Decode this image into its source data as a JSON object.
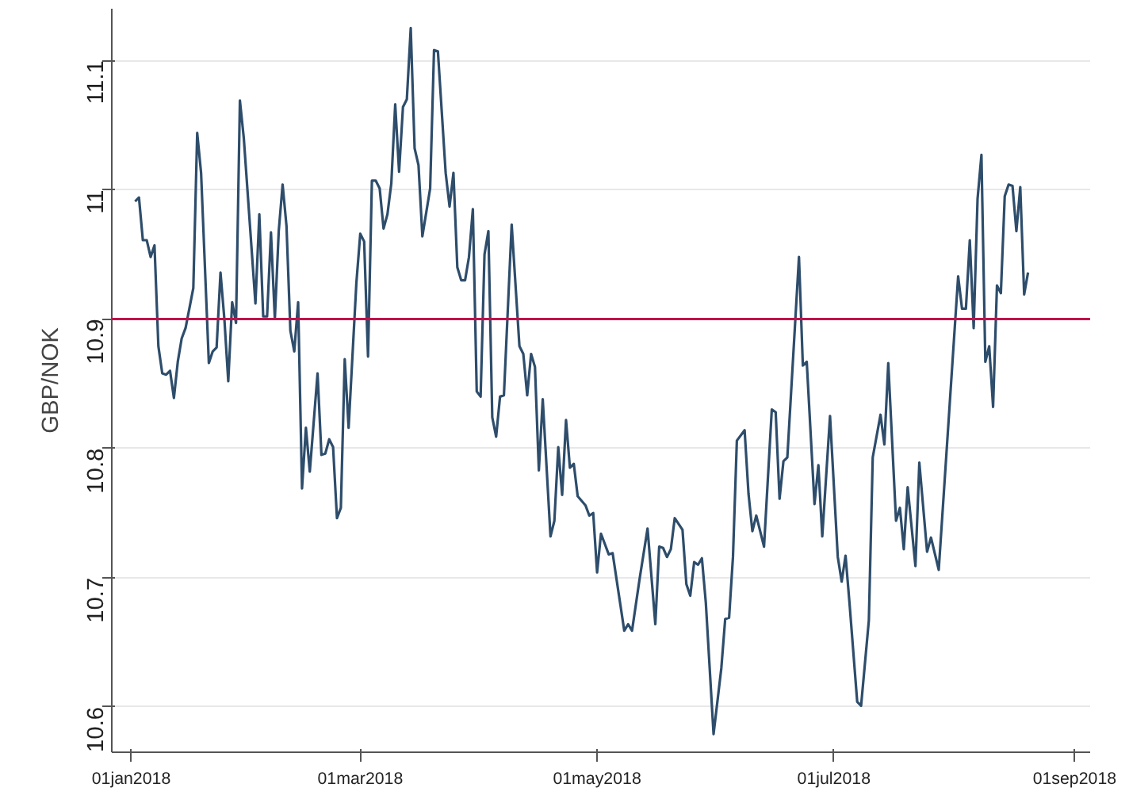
{
  "chart_data": {
    "type": "line",
    "ylabel": "GBP/NOK",
    "x": [
      "2018-01-02",
      "2018-01-03",
      "2018-01-04",
      "2018-01-05",
      "2018-01-06",
      "2018-01-07",
      "2018-01-08",
      "2018-01-09",
      "2018-01-10",
      "2018-01-11",
      "2018-01-12",
      "2018-01-13",
      "2018-01-14",
      "2018-01-15",
      "2018-01-17",
      "2018-01-18",
      "2018-01-19",
      "2018-01-21",
      "2018-01-22",
      "2018-01-23",
      "2018-01-24",
      "2018-01-25",
      "2018-01-26",
      "2018-01-27",
      "2018-01-28",
      "2018-01-29",
      "2018-01-30",
      "2018-02-02",
      "2018-02-03",
      "2018-02-04",
      "2018-02-05",
      "2018-02-06",
      "2018-02-07",
      "2018-02-08",
      "2018-02-09",
      "2018-02-10",
      "2018-02-11",
      "2018-02-12",
      "2018-02-13",
      "2018-02-14",
      "2018-02-15",
      "2018-02-16",
      "2018-02-18",
      "2018-02-19",
      "2018-02-20",
      "2018-02-21",
      "2018-02-22",
      "2018-02-23",
      "2018-02-24",
      "2018-02-25",
      "2018-02-26",
      "2018-02-28",
      "2018-03-01",
      "2018-03-02",
      "2018-03-03",
      "2018-03-04",
      "2018-03-05",
      "2018-03-06",
      "2018-03-07",
      "2018-03-08",
      "2018-03-09",
      "2018-03-10",
      "2018-03-11",
      "2018-03-12",
      "2018-03-13",
      "2018-03-14",
      "2018-03-15",
      "2018-03-16",
      "2018-03-17",
      "2018-03-19",
      "2018-03-20",
      "2018-03-21",
      "2018-03-23",
      "2018-03-24",
      "2018-03-25",
      "2018-03-26",
      "2018-03-27",
      "2018-03-28",
      "2018-03-29",
      "2018-03-30",
      "2018-03-31",
      "2018-04-01",
      "2018-04-02",
      "2018-04-03",
      "2018-04-04",
      "2018-04-05",
      "2018-04-06",
      "2018-04-07",
      "2018-04-09",
      "2018-04-11",
      "2018-04-12",
      "2018-04-13",
      "2018-04-14",
      "2018-04-15",
      "2018-04-16",
      "2018-04-17",
      "2018-04-19",
      "2018-04-20",
      "2018-04-21",
      "2018-04-22",
      "2018-04-23",
      "2018-04-24",
      "2018-04-25",
      "2018-04-26",
      "2018-04-28",
      "2018-04-29",
      "2018-04-30",
      "2018-05-01",
      "2018-05-02",
      "2018-05-04",
      "2018-05-05",
      "2018-05-08",
      "2018-05-09",
      "2018-05-10",
      "2018-05-12",
      "2018-05-14",
      "2018-05-16",
      "2018-05-17",
      "2018-05-18",
      "2018-05-19",
      "2018-05-20",
      "2018-05-21",
      "2018-05-23",
      "2018-05-24",
      "2018-05-25",
      "2018-05-26",
      "2018-05-27",
      "2018-05-28",
      "2018-05-29",
      "2018-05-31",
      "2018-06-02",
      "2018-06-03",
      "2018-06-04",
      "2018-06-05",
      "2018-06-06",
      "2018-06-08",
      "2018-06-09",
      "2018-06-10",
      "2018-06-11",
      "2018-06-13",
      "2018-06-15",
      "2018-06-16",
      "2018-06-17",
      "2018-06-18",
      "2018-06-19",
      "2018-06-22",
      "2018-06-23",
      "2018-06-24",
      "2018-06-26",
      "2018-06-27",
      "2018-06-28",
      "2018-06-30",
      "2018-07-02",
      "2018-07-03",
      "2018-07-04",
      "2018-07-05",
      "2018-07-07",
      "2018-07-08",
      "2018-07-10",
      "2018-07-11",
      "2018-07-13",
      "2018-07-14",
      "2018-07-15",
      "2018-07-17",
      "2018-07-18",
      "2018-07-19",
      "2018-07-20",
      "2018-07-22",
      "2018-07-23",
      "2018-07-25",
      "2018-07-26",
      "2018-07-28",
      "2018-08-02",
      "2018-08-03",
      "2018-08-04",
      "2018-08-05",
      "2018-08-06",
      "2018-08-07",
      "2018-08-08",
      "2018-08-09",
      "2018-08-10",
      "2018-08-11",
      "2018-08-12",
      "2018-08-13",
      "2018-08-14",
      "2018-08-15",
      "2018-08-16",
      "2018-08-17",
      "2018-08-18",
      "2018-08-19",
      "2018-08-20"
    ],
    "series": [
      {
        "color": "#2e4d6b",
        "values": [
          10.991,
          10.994,
          10.961,
          10.961,
          10.948,
          10.957,
          10.879,
          10.858,
          10.857,
          10.86,
          10.839,
          10.867,
          10.885,
          10.893,
          10.924,
          11.044,
          11.013,
          10.866,
          10.875,
          10.878,
          10.936,
          10.9,
          10.852,
          10.913,
          10.897,
          11.069,
          11.04,
          10.912,
          10.981,
          10.902,
          10.902,
          10.967,
          10.9,
          10.968,
          11.004,
          10.972,
          10.891,
          10.875,
          10.913,
          10.769,
          10.816,
          10.782,
          10.858,
          10.795,
          10.796,
          10.807,
          10.801,
          10.746,
          10.754,
          10.869,
          10.816,
          10.928,
          10.966,
          10.96,
          10.871,
          11.007,
          11.007,
          11.001,
          10.97,
          10.981,
          11.005,
          11.066,
          11.014,
          11.064,
          11.07,
          11.125,
          11.032,
          11.019,
          10.964,
          11.001,
          11.108,
          11.107,
          11.013,
          10.987,
          11.013,
          10.94,
          10.93,
          10.93,
          10.948,
          10.985,
          10.844,
          10.84,
          10.95,
          10.968,
          10.824,
          10.809,
          10.84,
          10.841,
          10.973,
          10.879,
          10.873,
          10.841,
          10.873,
          10.863,
          10.783,
          10.838,
          10.732,
          10.744,
          10.801,
          10.764,
          10.822,
          10.785,
          10.788,
          10.763,
          10.756,
          10.748,
          10.75,
          10.704,
          10.734,
          10.718,
          10.719,
          10.659,
          10.664,
          10.659,
          10.7,
          10.738,
          10.664,
          10.724,
          10.723,
          10.716,
          10.722,
          10.746,
          10.737,
          10.695,
          10.686,
          10.712,
          10.71,
          10.715,
          10.681,
          10.579,
          10.63,
          10.668,
          10.669,
          10.716,
          10.806,
          10.814,
          10.765,
          10.736,
          10.748,
          10.724,
          10.83,
          10.828,
          10.761,
          10.79,
          10.793,
          10.948,
          10.864,
          10.867,
          10.757,
          10.787,
          10.732,
          10.825,
          10.716,
          10.697,
          10.717,
          10.681,
          10.604,
          10.601,
          10.667,
          10.793,
          10.826,
          10.803,
          10.866,
          10.744,
          10.754,
          10.722,
          10.77,
          10.709,
          10.789,
          10.72,
          10.731,
          10.706,
          10.933,
          10.908,
          10.908,
          10.961,
          10.893,
          10.993,
          11.027,
          10.867,
          10.879,
          10.832,
          10.926,
          10.92,
          10.995,
          11.004,
          11.003,
          10.968,
          11.002,
          10.919,
          10.936
        ]
      }
    ],
    "xlim": [
      "2017-12-27",
      "2018-09-05"
    ],
    "xticks": [
      {
        "value": "2018-01-01",
        "label": "01jan2018"
      },
      {
        "value": "2018-03-01",
        "label": "01mar2018"
      },
      {
        "value": "2018-05-01",
        "label": "01may2018"
      },
      {
        "value": "2018-07-01",
        "label": "01jul2018"
      },
      {
        "value": "2018-09-01",
        "label": "01sep2018"
      }
    ],
    "ylim": [
      10.565,
      11.14
    ],
    "yticks": [
      10.6,
      10.7,
      10.8,
      10.9,
      11,
      11.1
    ],
    "ref_lines": [
      {
        "axis": "y",
        "value": 10.9,
        "color": "#c0124a"
      }
    ],
    "grid": "y",
    "line_style": "solid"
  }
}
